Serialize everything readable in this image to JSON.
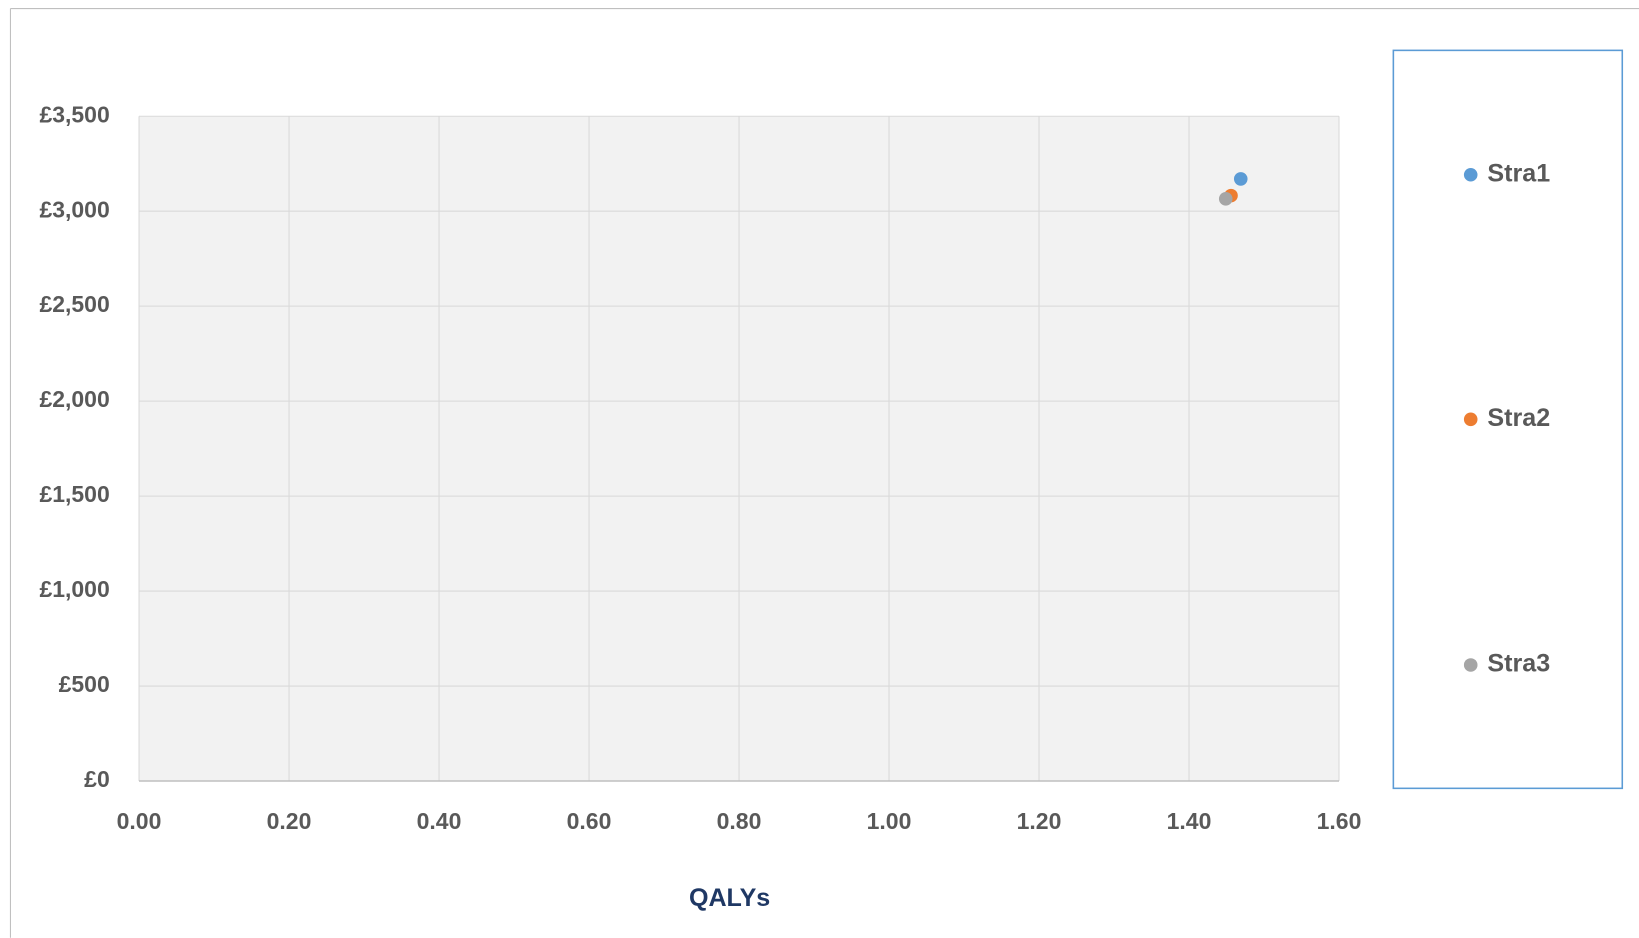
{
  "chart_data": {
    "type": "scatter",
    "x_label": "QALYs",
    "series": [
      {
        "name": "Stra1",
        "color": "#5b9bd5",
        "x": [
          1.469
        ],
        "values": [
          3170
        ]
      },
      {
        "name": "Stra2",
        "color": "#ed7d31",
        "x": [
          1.456
        ],
        "values": [
          3082
        ]
      },
      {
        "name": "Stra3",
        "color": "#a5a5a5",
        "x": [
          1.449
        ],
        "values": [
          3065
        ]
      }
    ],
    "xlim": [
      0,
      1.6
    ],
    "xticks": [
      {
        "value": 0,
        "label": "0.00"
      },
      {
        "value": 0.2,
        "label": "0.20"
      },
      {
        "value": 0.4,
        "label": "0.40"
      },
      {
        "value": 0.6,
        "label": "0.60"
      },
      {
        "value": 0.8,
        "label": "0.80"
      },
      {
        "value": 1,
        "label": "1.00"
      },
      {
        "value": 1.2,
        "label": "1.20"
      },
      {
        "value": 1.4,
        "label": "1.40"
      },
      {
        "value": 1.6,
        "label": "1.60"
      }
    ],
    "ylim": [
      0,
      3500
    ],
    "yticks": [
      {
        "value": 0,
        "label": "£0"
      },
      {
        "value": 500,
        "label": "£500"
      },
      {
        "value": 1000,
        "label": "£1,000"
      },
      {
        "value": 1500,
        "label": "£1,500"
      },
      {
        "value": 2000,
        "label": "£2,000"
      },
      {
        "value": 2500,
        "label": "£2,500"
      },
      {
        "value": 3000,
        "label": "£3,000"
      },
      {
        "value": 3500,
        "label": "£3,500"
      }
    ],
    "grid": true,
    "legend": "right"
  }
}
